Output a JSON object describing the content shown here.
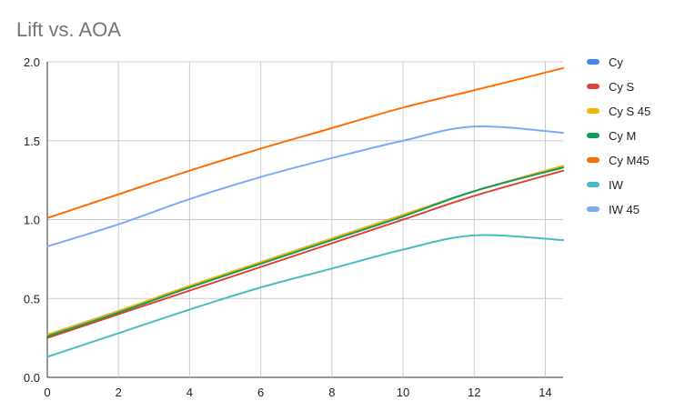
{
  "chart_data": {
    "type": "line",
    "title": "Lift vs. AOA",
    "xlabel": "",
    "ylabel": "",
    "xlim": [
      0,
      14.5
    ],
    "ylim": [
      0,
      2.0
    ],
    "xticks": [
      0,
      2,
      4,
      6,
      8,
      10,
      12,
      14
    ],
    "yticks": [
      0,
      0.5,
      1.0,
      1.5,
      2.0
    ],
    "xtick_labels": [
      "0",
      "2",
      "4",
      "6",
      "8",
      "10",
      "12",
      "14"
    ],
    "ytick_labels": [
      "0.0",
      "0.5",
      "1.0",
      "1.5",
      "2.0"
    ],
    "grid": true,
    "legend_position": "right",
    "x": [
      0,
      2,
      4,
      6,
      8,
      10,
      12,
      14.5
    ],
    "series": [
      {
        "name": "Cy",
        "color": "#4285F4",
        "values": [
          0.27,
          0.42,
          0.57,
          0.73,
          0.88,
          1.03,
          1.18,
          1.34
        ]
      },
      {
        "name": "Cy S",
        "color": "#DB4437",
        "values": [
          0.25,
          0.4,
          0.55,
          0.7,
          0.85,
          1.0,
          1.15,
          1.31
        ]
      },
      {
        "name": "Cy S 45",
        "color": "#F4B400",
        "values": [
          0.27,
          0.42,
          0.58,
          0.73,
          0.88,
          1.03,
          1.18,
          1.34
        ]
      },
      {
        "name": "Cy M",
        "color": "#0F9D58",
        "values": [
          0.26,
          0.41,
          0.57,
          0.72,
          0.87,
          1.02,
          1.18,
          1.33
        ]
      },
      {
        "name": "Cy M45",
        "color": "#FF6D01",
        "values": [
          1.01,
          1.16,
          1.31,
          1.45,
          1.58,
          1.71,
          1.82,
          1.96
        ]
      },
      {
        "name": "IW",
        "color": "#46BDC6",
        "values": [
          0.13,
          0.28,
          0.43,
          0.57,
          0.69,
          0.81,
          0.9,
          0.87
        ]
      },
      {
        "name": "IW 45",
        "color": "#7BAAF7",
        "values": [
          0.83,
          0.97,
          1.13,
          1.27,
          1.39,
          1.5,
          1.59,
          1.55
        ]
      }
    ]
  }
}
